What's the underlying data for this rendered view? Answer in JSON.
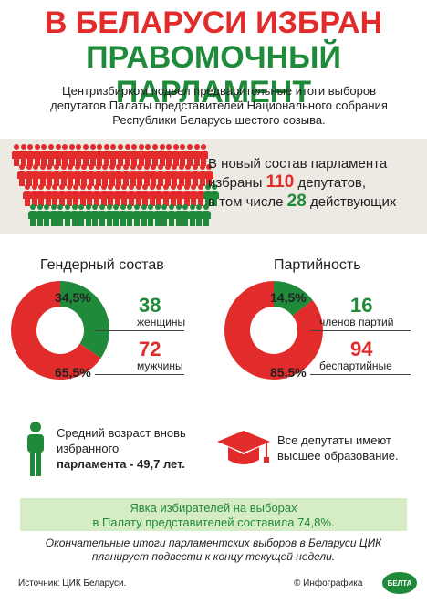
{
  "title": {
    "line1": "В БЕЛАРУСИ ИЗБРАН",
    "line2": "ПРАВОМОЧНЫЙ ПАРЛАМЕНТ"
  },
  "intro": "Центризбирком подвел предварительные итоги выборов депутатов Палаты представителей Национального собрания Республики Беларусь шестого созыва.",
  "composition": {
    "line1": "В новый состав парламента",
    "prefix": "избраны",
    "total": "110",
    "suffix": "депутатов,",
    "line3_prefix": "в том числе",
    "incumbents": "28",
    "line3_suffix": "действующих",
    "people_total": 110,
    "people_incumbent": 28
  },
  "gender": {
    "title": "Гендерный состав",
    "women_pct": "34,5%",
    "men_pct": "65,5%",
    "women_count": "38",
    "women_label": "женщины",
    "men_count": "72",
    "men_label": "мужчины",
    "women_fraction": 0.345
  },
  "party": {
    "title": "Партийность",
    "members_pct": "14,5%",
    "nonparty_pct": "85,5%",
    "members_count": "16",
    "members_label": "членов партий",
    "nonparty_count": "94",
    "nonparty_label": "беспартийные",
    "members_fraction": 0.145
  },
  "age": {
    "line1": "Средний возраст вновь",
    "line2": "избранного",
    "line3": "парламента - 49,7 лет."
  },
  "education": {
    "line1": "Все депутаты имеют",
    "line2": "высшее образование."
  },
  "turnout": {
    "line1": "Явка избирателей на выборах",
    "line2": "в Палату представителей составила 74,8%."
  },
  "final_note": {
    "line1": "Окончательные итоги парламентских выборов в Беларуси ЦИК",
    "line2": "планирует подвести к концу текущей недели."
  },
  "source": "Источник: ЦИК Беларуси.",
  "credit": "© Инфографика",
  "logo_text": "БЕЛТА",
  "colors": {
    "red": "#e22b2b",
    "green": "#1f8a3a",
    "band": "#edeae3",
    "turnout_bg": "#d6ecc4"
  }
}
